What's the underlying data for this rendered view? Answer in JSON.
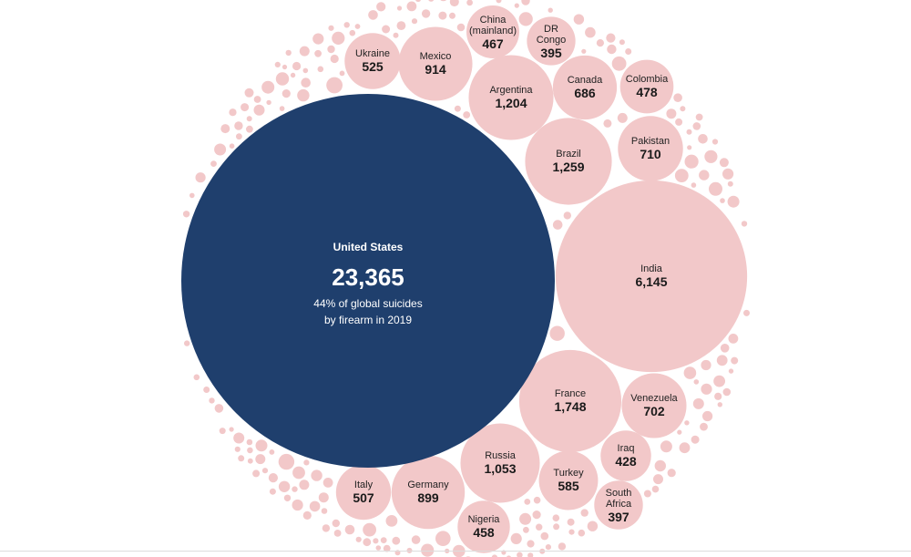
{
  "colors": {
    "highlight": "#1f3f6d",
    "bubble": "#f2c8c9",
    "background": "#ffffff"
  },
  "chart_data": {
    "type": "bubble",
    "title": "",
    "metric": "Suicides by firearm, 2019",
    "highlight": {
      "name": "United States",
      "value_label": "23,365",
      "value": 23365,
      "note_line1": "44% of global suicides",
      "note_line2": "by firearm in 2019"
    },
    "labeled": [
      {
        "id": "india",
        "lines": [
          "India"
        ],
        "value_label": "6,145",
        "value": 6145
      },
      {
        "id": "france",
        "lines": [
          "France"
        ],
        "value_label": "1,748",
        "value": 1748
      },
      {
        "id": "brazil",
        "lines": [
          "Brazil"
        ],
        "value_label": "1,259",
        "value": 1259
      },
      {
        "id": "argentina",
        "lines": [
          "Argentina"
        ],
        "value_label": "1,204",
        "value": 1204
      },
      {
        "id": "russia",
        "lines": [
          "Russia"
        ],
        "value_label": "1,053",
        "value": 1053
      },
      {
        "id": "mexico",
        "lines": [
          "Mexico"
        ],
        "value_label": "914",
        "value": 914
      },
      {
        "id": "germany",
        "lines": [
          "Germany"
        ],
        "value_label": "899",
        "value": 899
      },
      {
        "id": "pakistan",
        "lines": [
          "Pakistan"
        ],
        "value_label": "710",
        "value": 710
      },
      {
        "id": "venezuela",
        "lines": [
          "Venezuela"
        ],
        "value_label": "702",
        "value": 702
      },
      {
        "id": "canada",
        "lines": [
          "Canada"
        ],
        "value_label": "686",
        "value": 686
      },
      {
        "id": "turkey",
        "lines": [
          "Turkey"
        ],
        "value_label": "585",
        "value": 585
      },
      {
        "id": "ukraine",
        "lines": [
          "Ukraine"
        ],
        "value_label": "525",
        "value": 525
      },
      {
        "id": "italy",
        "lines": [
          "Italy"
        ],
        "value_label": "507",
        "value": 507
      },
      {
        "id": "colombia",
        "lines": [
          "Colombia"
        ],
        "value_label": "478",
        "value": 478
      },
      {
        "id": "china",
        "lines": [
          "China",
          "(mainland)"
        ],
        "value_label": "467",
        "value": 467
      },
      {
        "id": "nigeria",
        "lines": [
          "Nigeria"
        ],
        "value_label": "458",
        "value": 458
      },
      {
        "id": "iraq",
        "lines": [
          "Iraq"
        ],
        "value_label": "428",
        "value": 428
      },
      {
        "id": "south-africa",
        "lines": [
          "South",
          "Africa"
        ],
        "value_label": "397",
        "value": 397
      },
      {
        "id": "dr-congo",
        "lines": [
          "DR",
          "Congo"
        ],
        "value_label": "395",
        "value": 395
      }
    ]
  }
}
